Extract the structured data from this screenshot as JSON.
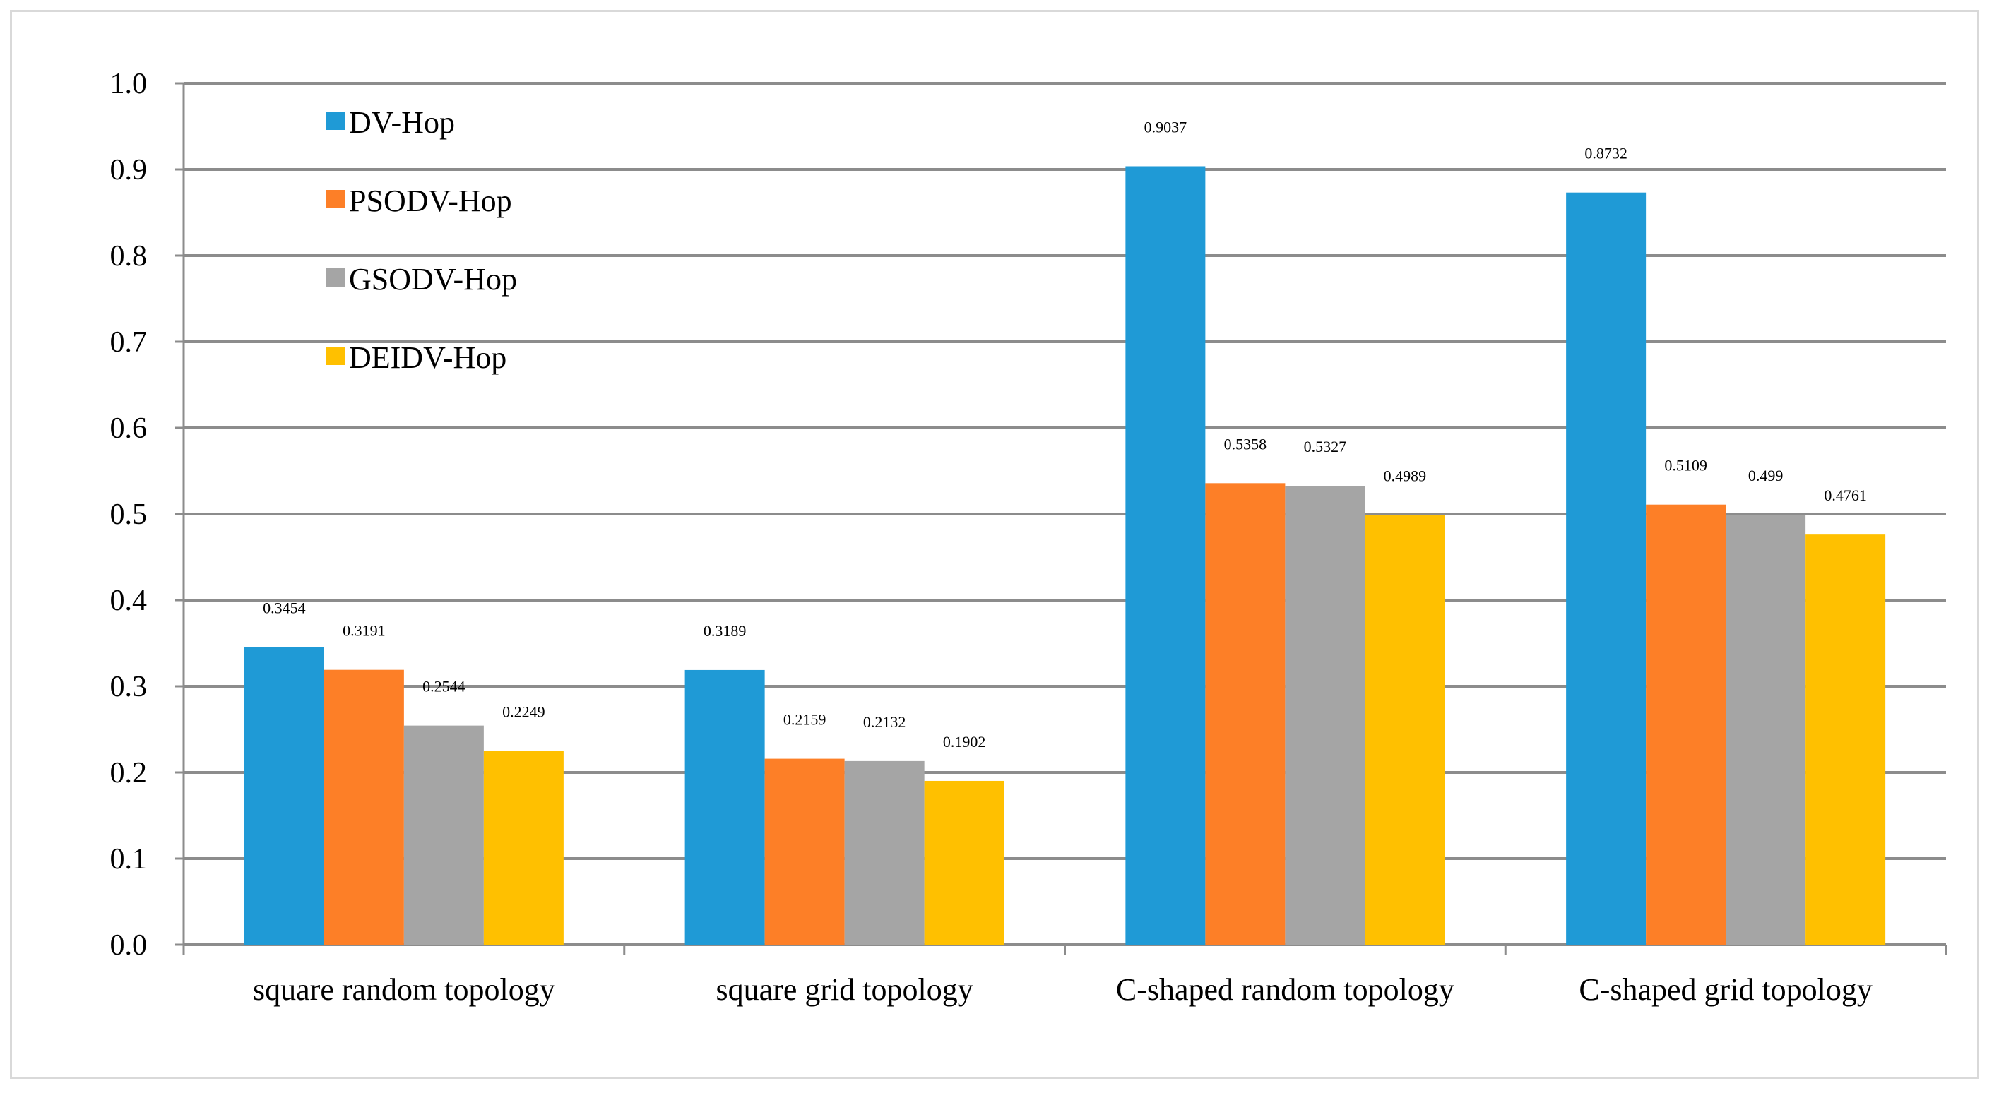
{
  "chart_data": {
    "type": "bar",
    "title": "",
    "xlabel": "",
    "ylabel": "",
    "ylim": [
      0,
      1.0
    ],
    "yticks": [
      "0.0",
      "0.1",
      "0.2",
      "0.3",
      "0.4",
      "0.5",
      "0.6",
      "0.7",
      "0.8",
      "0.9",
      "1.0"
    ],
    "grid": true,
    "legend_position": "top-left",
    "categories": [
      "square random topology",
      "square grid topology",
      "C-shaped random topology",
      "C-shaped grid topology"
    ],
    "series": [
      {
        "name": "DV-Hop",
        "color": "#1f9ad6",
        "values": [
          0.3454,
          0.3189,
          0.9037,
          0.8732
        ],
        "labels": [
          "0.3454",
          "0.3189",
          "0.9037",
          "0.8732"
        ]
      },
      {
        "name": "PSODV-Hop",
        "color": "#fd7f27",
        "values": [
          0.3191,
          0.2159,
          0.5358,
          0.5109
        ],
        "labels": [
          "0.3191",
          "0.2159",
          "0.5358",
          "0.5109"
        ]
      },
      {
        "name": "GSODV-Hop",
        "color": "#a5a5a5",
        "values": [
          0.2544,
          0.2132,
          0.5327,
          0.499
        ],
        "labels": [
          "0.2544",
          "0.2132",
          "0.5327",
          "0.499"
        ]
      },
      {
        "name": "DEIDV-Hop",
        "color": "#ffc000",
        "values": [
          0.2249,
          0.1902,
          0.4989,
          0.4761
        ],
        "labels": [
          "0.2249",
          "0.1902",
          "0.4989",
          "0.4761"
        ]
      }
    ]
  }
}
